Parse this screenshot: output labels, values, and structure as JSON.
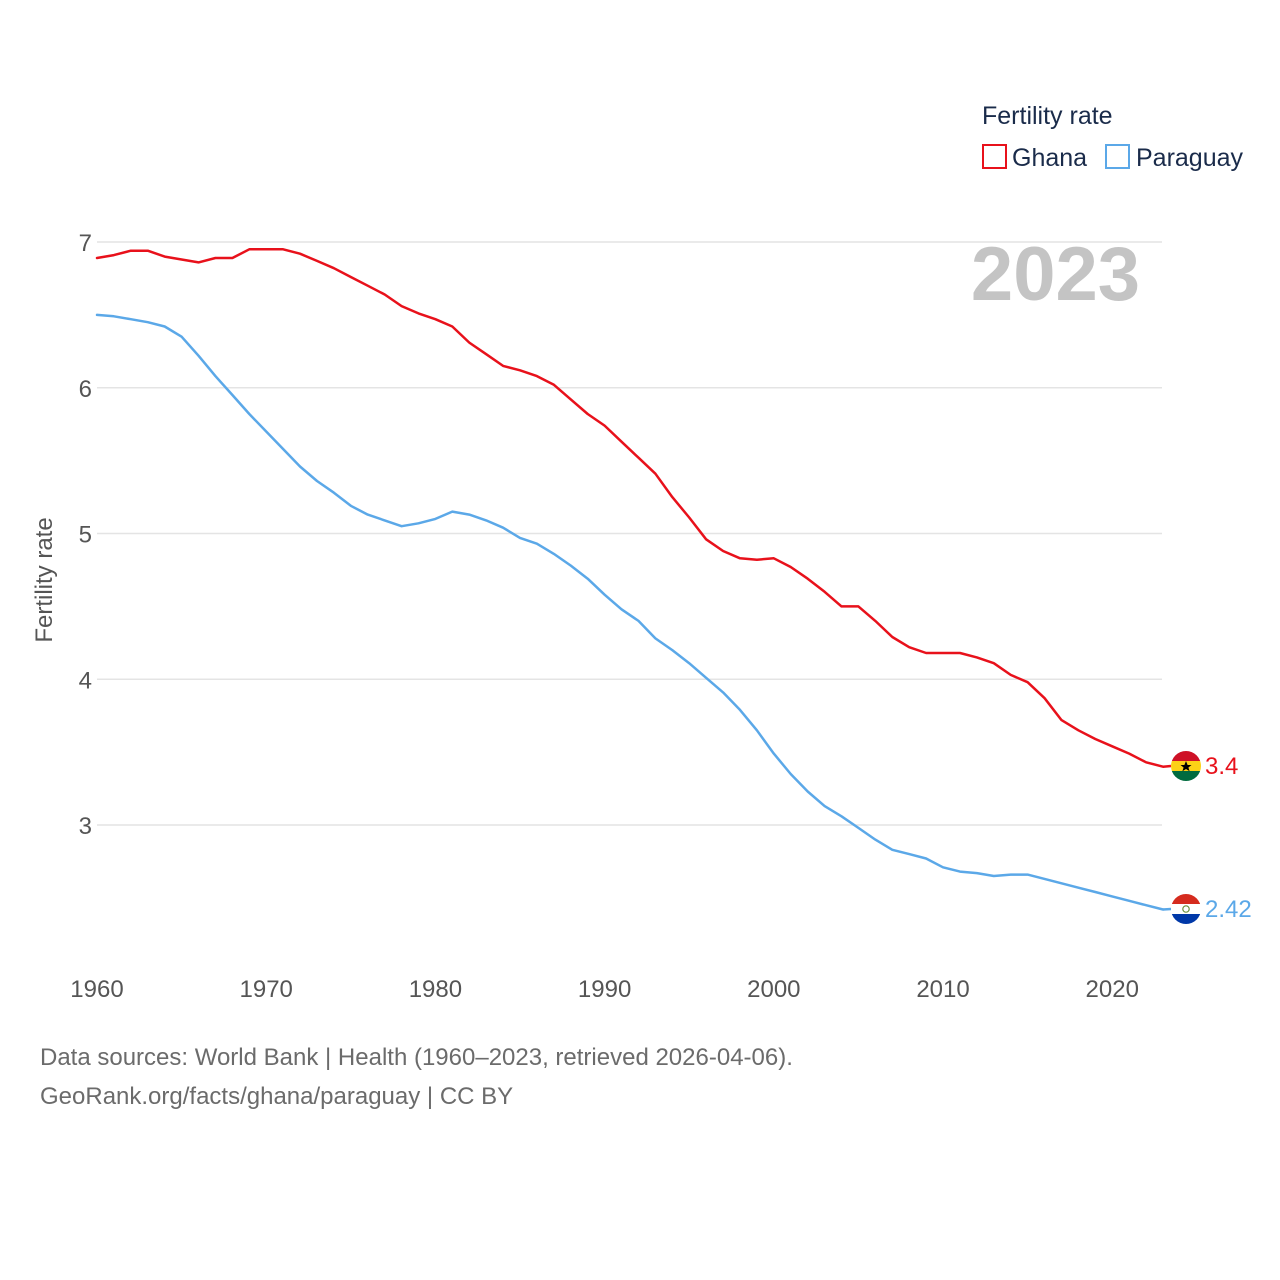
{
  "chart_data": {
    "type": "line",
    "title": "",
    "ylabel": "Fertility rate",
    "xlabel": "",
    "xlim": [
      1960,
      2023
    ],
    "ylim": [
      2.2,
      7.05
    ],
    "x_ticks": [
      1960,
      1970,
      1980,
      1990,
      2000,
      2010,
      2020
    ],
    "y_ticks": [
      3,
      4,
      5,
      6,
      7
    ],
    "grid": true,
    "legend": {
      "title": "Fertility rate",
      "position": "top-right"
    },
    "year_label": "2023",
    "series": [
      {
        "name": "Ghana",
        "color": "#e8111b",
        "end_label": "3.4",
        "x": [
          1960,
          1961,
          1962,
          1963,
          1964,
          1965,
          1966,
          1967,
          1968,
          1969,
          1970,
          1971,
          1972,
          1973,
          1974,
          1975,
          1976,
          1977,
          1978,
          1979,
          1980,
          1981,
          1982,
          1983,
          1984,
          1985,
          1986,
          1987,
          1988,
          1989,
          1990,
          1991,
          1992,
          1993,
          1994,
          1995,
          1996,
          1997,
          1998,
          1999,
          2000,
          2001,
          2002,
          2003,
          2004,
          2005,
          2006,
          2007,
          2008,
          2009,
          2010,
          2011,
          2012,
          2013,
          2014,
          2015,
          2016,
          2017,
          2018,
          2019,
          2020,
          2021,
          2022,
          2023
        ],
        "values": [
          6.89,
          6.91,
          6.94,
          6.94,
          6.9,
          6.88,
          6.86,
          6.89,
          6.89,
          6.95,
          6.95,
          6.95,
          6.92,
          6.87,
          6.82,
          6.76,
          6.7,
          6.64,
          6.56,
          6.51,
          6.47,
          6.42,
          6.31,
          6.23,
          6.15,
          6.12,
          6.08,
          6.02,
          5.92,
          5.82,
          5.74,
          5.63,
          5.52,
          5.41,
          5.25,
          5.11,
          4.96,
          4.88,
          4.83,
          4.82,
          4.83,
          4.77,
          4.69,
          4.6,
          4.5,
          4.5,
          4.4,
          4.29,
          4.22,
          4.18,
          4.18,
          4.18,
          4.15,
          4.11,
          4.03,
          3.98,
          3.87,
          3.72,
          3.65,
          3.59,
          3.54,
          3.49,
          3.43,
          3.4
        ]
      },
      {
        "name": "Paraguay",
        "color": "#5ba8e8",
        "end_label": "2.42",
        "x": [
          1960,
          1961,
          1962,
          1963,
          1964,
          1965,
          1966,
          1967,
          1968,
          1969,
          1970,
          1971,
          1972,
          1973,
          1974,
          1975,
          1976,
          1977,
          1978,
          1979,
          1980,
          1981,
          1982,
          1983,
          1984,
          1985,
          1986,
          1987,
          1988,
          1989,
          1990,
          1991,
          1992,
          1993,
          1994,
          1995,
          1996,
          1997,
          1998,
          1999,
          2000,
          2001,
          2002,
          2003,
          2004,
          2005,
          2006,
          2007,
          2008,
          2009,
          2010,
          2011,
          2012,
          2013,
          2014,
          2015,
          2016,
          2017,
          2018,
          2019,
          2020,
          2021,
          2022,
          2023
        ],
        "values": [
          6.5,
          6.49,
          6.47,
          6.45,
          6.42,
          6.35,
          6.22,
          6.08,
          5.95,
          5.82,
          5.7,
          5.58,
          5.46,
          5.36,
          5.28,
          5.19,
          5.13,
          5.09,
          5.05,
          5.07,
          5.1,
          5.15,
          5.13,
          5.09,
          5.04,
          4.97,
          4.93,
          4.86,
          4.78,
          4.69,
          4.58,
          4.48,
          4.4,
          4.28,
          4.2,
          4.11,
          4.01,
          3.91,
          3.79,
          3.65,
          3.49,
          3.35,
          3.23,
          3.13,
          3.06,
          2.98,
          2.9,
          2.83,
          2.8,
          2.77,
          2.71,
          2.68,
          2.67,
          2.65,
          2.66,
          2.66,
          2.63,
          2.6,
          2.57,
          2.54,
          2.51,
          2.48,
          2.45,
          2.42
        ]
      }
    ]
  },
  "footer": {
    "line1": "Data sources: World Bank | Health (1960–2023, retrieved 2026-04-06).",
    "line2": "GeoRank.org/facts/ghana/paraguay | CC BY"
  }
}
